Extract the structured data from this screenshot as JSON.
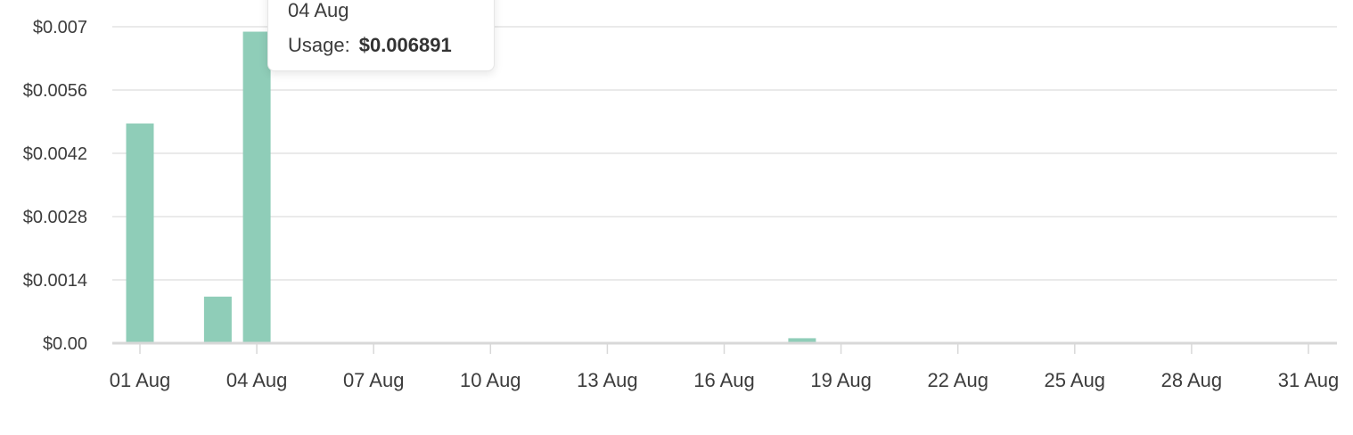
{
  "colors": {
    "bar": "#8fcdb8",
    "grid": "#e3e3e3",
    "axis": "#d8d8d8",
    "text": "#3c3c3c"
  },
  "tooltip": {
    "date": "04 Aug",
    "label": "Usage:",
    "value": "$0.006891"
  },
  "chart_data": {
    "type": "bar",
    "title": "",
    "xlabel": "",
    "ylabel": "",
    "ylim": [
      0,
      0.007
    ],
    "yticks": [
      0,
      0.0014,
      0.0028,
      0.0042,
      0.0056,
      0.007
    ],
    "ytick_labels": [
      "$0.00",
      "$0.0014",
      "$0.0028",
      "$0.0042",
      "$0.0056",
      "$0.007"
    ],
    "xtick_labels": [
      "01 Aug",
      "04 Aug",
      "07 Aug",
      "10 Aug",
      "13 Aug",
      "16 Aug",
      "19 Aug",
      "22 Aug",
      "25 Aug",
      "28 Aug",
      "31 Aug"
    ],
    "xtick_days": [
      1,
      4,
      7,
      10,
      13,
      16,
      19,
      22,
      25,
      28,
      31
    ],
    "categories": [
      "01 Aug",
      "02 Aug",
      "03 Aug",
      "04 Aug",
      "05 Aug",
      "06 Aug",
      "07 Aug",
      "08 Aug",
      "09 Aug",
      "10 Aug",
      "11 Aug",
      "12 Aug",
      "13 Aug",
      "14 Aug",
      "15 Aug",
      "16 Aug",
      "17 Aug",
      "18 Aug",
      "19 Aug",
      "20 Aug",
      "21 Aug",
      "22 Aug",
      "23 Aug",
      "24 Aug",
      "25 Aug",
      "26 Aug",
      "27 Aug",
      "28 Aug",
      "29 Aug",
      "30 Aug",
      "31 Aug"
    ],
    "values": [
      0.00486,
      0,
      0.00103,
      0.006891,
      0,
      0,
      0,
      0,
      0,
      0,
      0,
      0,
      0,
      0,
      0,
      0,
      0,
      0.00011,
      0,
      0,
      0,
      0,
      0,
      0,
      0,
      0,
      0,
      0,
      0,
      0,
      0
    ],
    "grid": true
  }
}
